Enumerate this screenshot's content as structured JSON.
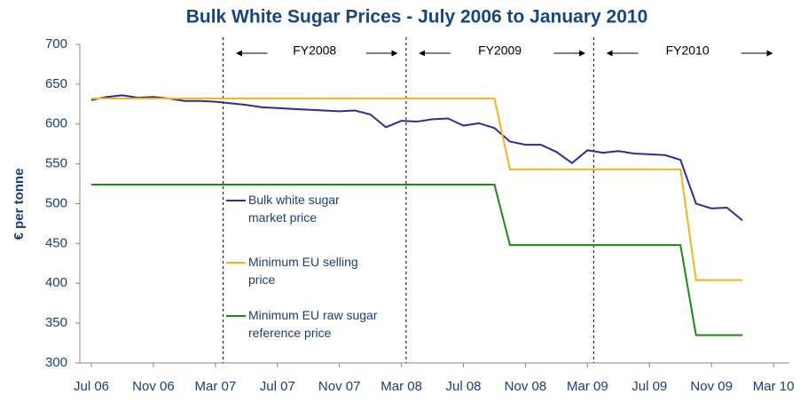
{
  "chart_data": {
    "type": "line",
    "title": "Bulk White Sugar Prices - July 2006 to January 2010",
    "y_label": "€ per tonne",
    "categories": [
      "Jul 06",
      null,
      null,
      null,
      "Nov 06",
      null,
      null,
      null,
      "Mar 07",
      null,
      null,
      null,
      "Jul 07",
      null,
      null,
      null,
      "Nov 07",
      null,
      null,
      null,
      "Mar 08",
      null,
      null,
      null,
      "Jul 08",
      null,
      null,
      null,
      "Nov 08",
      null,
      null,
      null,
      "Mar 09",
      null,
      null,
      null,
      "Jul 09",
      null,
      null,
      null,
      "Nov 09",
      null,
      null,
      null,
      "Mar 10"
    ],
    "series": [
      {
        "name": "Bulk white sugar market price",
        "color": "#2d2f8e",
        "values": [
          630,
          634,
          636,
          633,
          634,
          632,
          629,
          629,
          628,
          626,
          624,
          621,
          620,
          619,
          618,
          617,
          616,
          617,
          612,
          596,
          604,
          603,
          606,
          607,
          598,
          601,
          595,
          578,
          574,
          574,
          565,
          551,
          567,
          564,
          566,
          563,
          562,
          561,
          555,
          500,
          494,
          495,
          479,
          null,
          null
        ]
      },
      {
        "name": "Minimum EU selling price",
        "color": "#f2b51f",
        "values": [
          632,
          632,
          632,
          632,
          632,
          632,
          632,
          632,
          632,
          632,
          632,
          632,
          632,
          632,
          632,
          632,
          632,
          632,
          632,
          632,
          632,
          632,
          632,
          632,
          632,
          632,
          632,
          543,
          543,
          543,
          543,
          543,
          543,
          543,
          543,
          543,
          543,
          543,
          543,
          404,
          404,
          404,
          404,
          null,
          null
        ]
      },
      {
        "name": "Minimum EU raw sugar reference price",
        "color": "#1b8a1b",
        "values": [
          524,
          524,
          524,
          524,
          524,
          524,
          524,
          524,
          524,
          524,
          524,
          524,
          524,
          524,
          524,
          524,
          524,
          524,
          524,
          524,
          524,
          524,
          524,
          524,
          524,
          524,
          524,
          448,
          448,
          448,
          448,
          448,
          448,
          448,
          448,
          448,
          448,
          448,
          448,
          335,
          335,
          335,
          335,
          null,
          null
        ]
      }
    ],
    "ylim": [
      300,
      700
    ],
    "yticks": [
      300,
      350,
      400,
      450,
      500,
      550,
      600,
      650,
      700
    ],
    "annotations": [
      "FY2008",
      "FY2009",
      "FY2010"
    ],
    "legend": "inside-center"
  }
}
